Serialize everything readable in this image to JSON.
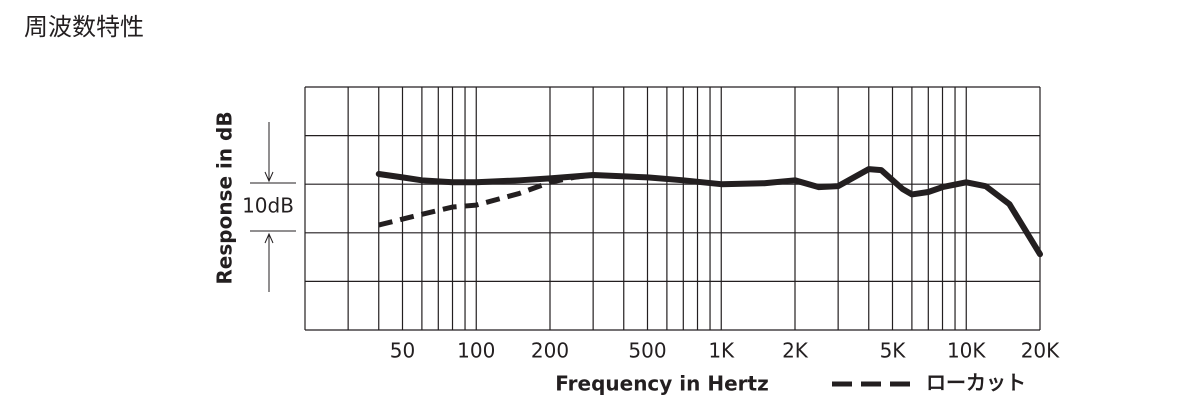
{
  "chart_data": {
    "type": "line",
    "title": "周波数特性",
    "xlabel": "Frequency in Hertz",
    "ylabel": "Response in dB",
    "scale_label": "10dB",
    "xscale": "log",
    "xlim": [
      20,
      20000
    ],
    "ylim": [
      -30,
      20
    ],
    "xticks": [
      50,
      100,
      200,
      500,
      {
        "value": 1000,
        "label": "1K"
      },
      {
        "value": 2000,
        "label": "2K"
      },
      {
        "value": 5000,
        "label": "5K"
      },
      {
        "value": 10000,
        "label": "10K"
      },
      {
        "value": 20000,
        "label": "20K"
      }
    ],
    "xgrid": [
      20,
      30,
      40,
      50,
      60,
      70,
      80,
      90,
      100,
      200,
      300,
      400,
      500,
      600,
      700,
      800,
      900,
      1000,
      2000,
      3000,
      4000,
      5000,
      6000,
      7000,
      8000,
      9000,
      10000,
      20000
    ],
    "yticks": [
      -30,
      -20,
      -10,
      0,
      10,
      20
    ],
    "series": [
      {
        "color": "#231f20",
        "dash": false,
        "x": [
          40,
          50,
          60,
          80,
          100,
          150,
          200,
          300,
          500,
          700,
          1000,
          1500,
          2000,
          2500,
          3000,
          4000,
          4500,
          5500,
          6000,
          7000,
          8000,
          10000,
          12000,
          15000,
          20000
        ],
        "values": [
          2.1,
          1.4,
          0.8,
          0.4,
          0.4,
          0.8,
          1.2,
          1.9,
          1.4,
          0.8,
          0,
          0.2,
          0.8,
          -0.6,
          -0.4,
          3.1,
          2.9,
          -1,
          -2.1,
          -1.6,
          -0.6,
          0.4,
          -0.4,
          -4.1,
          -14.4
        ]
      },
      {
        "name": "ローカット",
        "color": "#231f20",
        "dash": true,
        "x": [
          40,
          60,
          80,
          100,
          150,
          200,
          250,
          300
        ],
        "values": [
          -8.4,
          -6.2,
          -4.7,
          -4.3,
          -1.9,
          0.4,
          1.4,
          1.9
        ]
      }
    ]
  }
}
